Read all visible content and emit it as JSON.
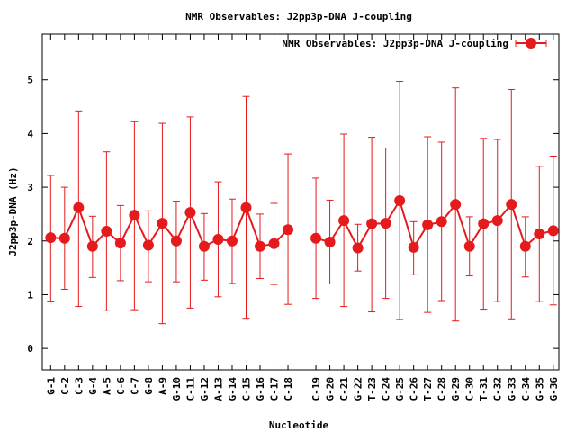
{
  "chart_data": {
    "type": "line",
    "title": "NMR Observables: J2pp3p-DNA J-coupling",
    "xlabel": "Nucleotide",
    "ylabel": "J2pp3p-DNA (Hz)",
    "ylim": [
      -0.4,
      5.85
    ],
    "yticks": [
      0,
      1,
      2,
      3,
      4,
      5
    ],
    "grid": false,
    "legend_position": "top-right",
    "color": "#e41a1c",
    "series": [
      {
        "name": "NMR Observables: J2pp3p-DNA J-coupling",
        "points": [
          {
            "x": 1,
            "label": "G-1",
            "y": 2.06,
            "err": [
              0.88,
              3.22
            ]
          },
          {
            "x": 2,
            "label": "C-2",
            "y": 2.05,
            "err": [
              1.1,
              3.0
            ]
          },
          {
            "x": 3,
            "label": "C-3",
            "y": 2.62,
            "err": [
              0.78,
              4.42
            ]
          },
          {
            "x": 4,
            "label": "G-4",
            "y": 1.9,
            "err": [
              1.32,
              2.46
            ]
          },
          {
            "x": 5,
            "label": "A-5",
            "y": 2.18,
            "err": [
              0.7,
              3.66
            ]
          },
          {
            "x": 6,
            "label": "C-6",
            "y": 1.96,
            "err": [
              1.26,
              2.66
            ]
          },
          {
            "x": 7,
            "label": "C-7",
            "y": 2.48,
            "err": [
              0.72,
              4.22
            ]
          },
          {
            "x": 8,
            "label": "G-8",
            "y": 1.92,
            "err": [
              1.24,
              2.56
            ]
          },
          {
            "x": 9,
            "label": "A-9",
            "y": 2.33,
            "err": [
              0.46,
              4.19
            ]
          },
          {
            "x": 10,
            "label": "G-10",
            "y": 2.0,
            "err": [
              1.24,
              2.74
            ]
          },
          {
            "x": 11,
            "label": "C-11",
            "y": 2.53,
            "err": [
              0.75,
              4.31
            ]
          },
          {
            "x": 12,
            "label": "G-12",
            "y": 1.9,
            "err": [
              1.27,
              2.51
            ]
          },
          {
            "x": 13,
            "label": "A-13",
            "y": 2.03,
            "err": [
              0.96,
              3.1
            ]
          },
          {
            "x": 14,
            "label": "G-14",
            "y": 2.0,
            "err": [
              1.21,
              2.78
            ]
          },
          {
            "x": 15,
            "label": "C-15",
            "y": 2.62,
            "err": [
              0.56,
              4.69
            ]
          },
          {
            "x": 16,
            "label": "G-16",
            "y": 1.9,
            "err": [
              1.3,
              2.5
            ]
          },
          {
            "x": 17,
            "label": "C-17",
            "y": 1.95,
            "err": [
              1.19,
              2.7
            ]
          },
          {
            "x": 18,
            "label": "C-18",
            "y": 2.21,
            "err": [
              0.82,
              3.62
            ]
          },
          {
            "x": 20,
            "label": "C-19",
            "y": 2.05,
            "err": [
              0.93,
              3.17
            ]
          },
          {
            "x": 21,
            "label": "G-20",
            "y": 1.98,
            "err": [
              1.2,
              2.76
            ]
          },
          {
            "x": 22,
            "label": "C-21",
            "y": 2.38,
            "err": [
              0.78,
              3.99
            ]
          },
          {
            "x": 23,
            "label": "G-22",
            "y": 1.87,
            "err": [
              1.44,
              2.31
            ]
          },
          {
            "x": 24,
            "label": "T-23",
            "y": 2.32,
            "err": [
              0.68,
              3.93
            ]
          },
          {
            "x": 25,
            "label": "C-24",
            "y": 2.33,
            "err": [
              0.93,
              3.73
            ]
          },
          {
            "x": 26,
            "label": "G-25",
            "y": 2.75,
            "err": [
              0.54,
              4.97
            ]
          },
          {
            "x": 27,
            "label": "C-26",
            "y": 1.88,
            "err": [
              1.37,
              2.36
            ]
          },
          {
            "x": 28,
            "label": "T-27",
            "y": 2.3,
            "err": [
              0.67,
              3.94
            ]
          },
          {
            "x": 29,
            "label": "C-28",
            "y": 2.36,
            "err": [
              0.89,
              3.84
            ]
          },
          {
            "x": 30,
            "label": "G-29",
            "y": 2.68,
            "err": [
              0.51,
              4.85
            ]
          },
          {
            "x": 31,
            "label": "C-30",
            "y": 1.9,
            "err": [
              1.35,
              2.45
            ]
          },
          {
            "x": 32,
            "label": "T-31",
            "y": 2.32,
            "err": [
              0.73,
              3.91
            ]
          },
          {
            "x": 33,
            "label": "C-32",
            "y": 2.38,
            "err": [
              0.87,
              3.89
            ]
          },
          {
            "x": 34,
            "label": "G-33",
            "y": 2.68,
            "err": [
              0.55,
              4.82
            ]
          },
          {
            "x": 35,
            "label": "C-34",
            "y": 1.9,
            "err": [
              1.33,
              2.45
            ]
          },
          {
            "x": 36,
            "label": "G-35",
            "y": 2.13,
            "err": [
              0.87,
              3.39
            ]
          },
          {
            "x": 37,
            "label": "G-36",
            "y": 2.19,
            "err": [
              0.81,
              3.58
            ]
          }
        ]
      }
    ],
    "xlim": [
      0.4,
      37.4
    ]
  }
}
